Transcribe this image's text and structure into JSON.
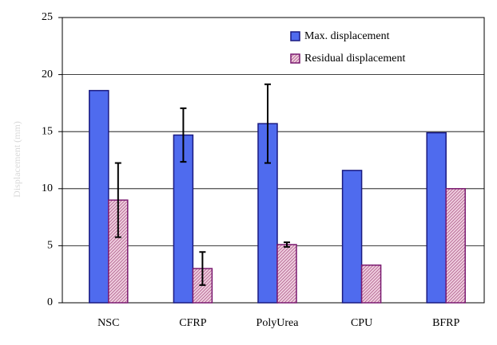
{
  "chart_data": {
    "type": "bar",
    "y_label": "Displacement (mm)",
    "categories": [
      "NSC",
      "CFRP",
      "PolyUrea",
      "CPU",
      "BFRP"
    ],
    "series": [
      {
        "name": "Max. displacement",
        "color": "#4f6bee",
        "values": [
          18.6,
          14.7,
          15.7,
          11.6,
          14.9
        ],
        "errors": [
          null,
          2.35,
          3.45,
          null,
          null
        ]
      },
      {
        "name": "Residual displacement",
        "color": "#e6b3cf",
        "values": [
          9.0,
          3.0,
          5.1,
          3.3,
          10.0
        ],
        "errors": [
          3.25,
          1.45,
          0.2,
          null,
          null
        ]
      }
    ],
    "ylim": [
      0,
      25
    ],
    "yticks": [
      0,
      5,
      10,
      15,
      20,
      25
    ],
    "grid": true,
    "legend": "upper right"
  }
}
